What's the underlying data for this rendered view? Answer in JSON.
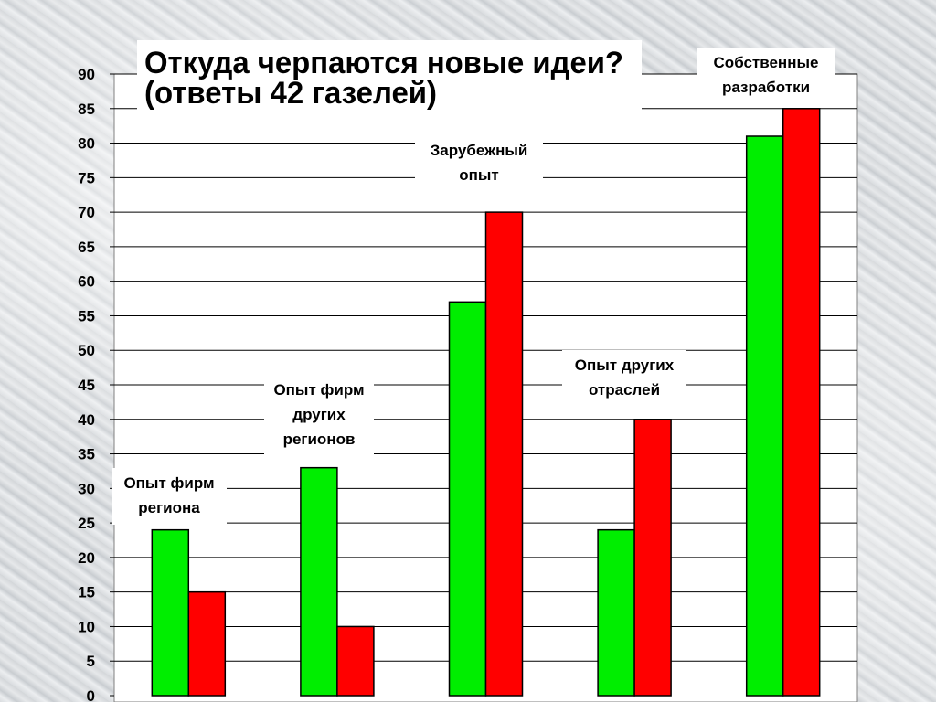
{
  "chart_data": {
    "type": "bar",
    "title": [
      "Откуда черпаются новые идеи?",
      "(ответы 42 газелей)"
    ],
    "xlabel": "",
    "ylabel": "",
    "ylim": [
      0,
      90
    ],
    "yticks": [
      0,
      5,
      10,
      15,
      20,
      25,
      30,
      35,
      40,
      45,
      50,
      55,
      60,
      65,
      70,
      75,
      80,
      85,
      90
    ],
    "grid": true,
    "legend": "none",
    "categories": [
      [
        "Опыт фирм",
        "региона"
      ],
      [
        "Опыт фирм",
        "других",
        "регионов"
      ],
      [
        "Зарубежный",
        "опыт"
      ],
      [
        "Опыт других",
        "отраслей"
      ],
      [
        "Собственные",
        "разработки"
      ]
    ],
    "series": [
      {
        "values": [
          24,
          33,
          57,
          24,
          81
        ],
        "color": "#00ee00"
      },
      {
        "values": [
          15,
          10,
          70,
          40,
          85
        ],
        "color": "#ff0000"
      }
    ]
  }
}
